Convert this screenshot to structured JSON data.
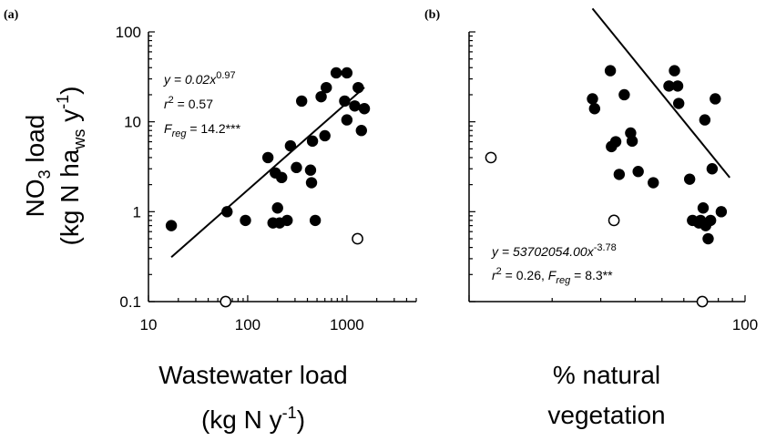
{
  "chart_data": [
    {
      "panel_label": "(a)",
      "type": "scatter",
      "xscale": "log",
      "yscale": "log",
      "xlim": [
        10,
        5000
      ],
      "ylim": [
        0.1,
        100
      ],
      "x_ticks": [
        10,
        100,
        1000
      ],
      "x_tick_labels": [
        "10",
        "100",
        "1000"
      ],
      "y_ticks": [
        0.1,
        1,
        10,
        100
      ],
      "y_tick_labels": [
        "0.1",
        "1",
        "10",
        "100"
      ],
      "xlabel_line1": "Wastewater load",
      "xlabel_line2_main": "(kg N y",
      "xlabel_line2_sup": "-1",
      "xlabel_line2_end": ")",
      "ylabel_line1_main": "NO",
      "ylabel_line1_sub": "3",
      "ylabel_line1_end": " load",
      "ylabel_line2_main": "(kg N ha",
      "ylabel_line2_sub": "ws",
      "ylabel_line2_mid": " y",
      "ylabel_line2_sup": "-1",
      "ylabel_line2_end": ")",
      "annotation": {
        "eq_main": "y = 0.02x",
        "eq_exp": "0.97",
        "r2_main": "r",
        "r2_sup": "2",
        "r2_end": " = 0.57",
        "f_main": "F",
        "f_sub": "reg",
        "f_end": " = 14.2***"
      },
      "fit": {
        "a": 0.02,
        "b": 0.97,
        "x_range": [
          17,
          1500
        ]
      },
      "series": [
        {
          "marker": "filled",
          "points": [
            [
              17,
              0.7
            ],
            [
              62,
              1.0
            ],
            [
              95,
              0.8
            ],
            [
              160,
              4.0
            ],
            [
              180,
              0.75
            ],
            [
              190,
              2.7
            ],
            [
              200,
              1.1
            ],
            [
              210,
              0.75
            ],
            [
              220,
              2.4
            ],
            [
              250,
              0.8
            ],
            [
              270,
              5.4
            ],
            [
              310,
              3.1
            ],
            [
              350,
              17
            ],
            [
              430,
              2.9
            ],
            [
              440,
              2.1
            ],
            [
              450,
              6.1
            ],
            [
              480,
              0.8
            ],
            [
              550,
              19
            ],
            [
              600,
              7.0
            ],
            [
              620,
              24
            ],
            [
              780,
              35
            ],
            [
              950,
              17
            ],
            [
              1000,
              10.5
            ],
            [
              1000,
              35
            ],
            [
              1200,
              15
            ],
            [
              1300,
              24
            ],
            [
              1400,
              8.0
            ],
            [
              1500,
              14
            ]
          ]
        },
        {
          "marker": "open",
          "points": [
            [
              60,
              0.1
            ],
            [
              1280,
              0.5
            ]
          ]
        }
      ]
    },
    {
      "panel_label": "(b)",
      "type": "scatter",
      "xscale": "log",
      "yscale": "log",
      "xlim": [
        10,
        100
      ],
      "ylim": [
        0.1,
        100
      ],
      "x_ticks": [
        100
      ],
      "x_tick_labels": [
        "100"
      ],
      "y_ticks": [
        0.1,
        1,
        10,
        100
      ],
      "xlabel_line1": "% natural",
      "xlabel_line2": "vegetation",
      "annotation": {
        "eq_main": "y = 53702054.00x",
        "eq_exp": "-3.78",
        "r2_main": "r",
        "r2_sup": "2",
        "r2_mid": " = 0.26, ",
        "f_main": "F",
        "f_sub": "reg",
        "f_end": " = 8.3**"
      },
      "fit": {
        "a": 53702054.0,
        "b": -3.78,
        "x_range": [
          28,
          88
        ]
      },
      "series": [
        {
          "marker": "filled",
          "points": [
            [
              28,
              18
            ],
            [
              28.5,
              14
            ],
            [
              32.5,
              37
            ],
            [
              32.8,
              5.3
            ],
            [
              34,
              6.0
            ],
            [
              35,
              2.6
            ],
            [
              36.5,
              20
            ],
            [
              38.5,
              7.5
            ],
            [
              39,
              6.1
            ],
            [
              41,
              2.8
            ],
            [
              46.5,
              2.1
            ],
            [
              53,
              25
            ],
            [
              55.5,
              37
            ],
            [
              57,
              25
            ],
            [
              57.5,
              16
            ],
            [
              63,
              2.3
            ],
            [
              64.5,
              0.8
            ],
            [
              68,
              0.75
            ],
            [
              69,
              0.8
            ],
            [
              70.5,
              1.1
            ],
            [
              71.5,
              10.5
            ],
            [
              72,
              0.7
            ],
            [
              73.5,
              0.5
            ],
            [
              75,
              0.8
            ],
            [
              76,
              3.0
            ],
            [
              78,
              18
            ],
            [
              82,
              1.0
            ]
          ]
        },
        {
          "marker": "open",
          "points": [
            [
              12,
              4.0
            ],
            [
              33.5,
              0.8
            ],
            [
              70,
              0.1
            ]
          ]
        }
      ]
    }
  ]
}
